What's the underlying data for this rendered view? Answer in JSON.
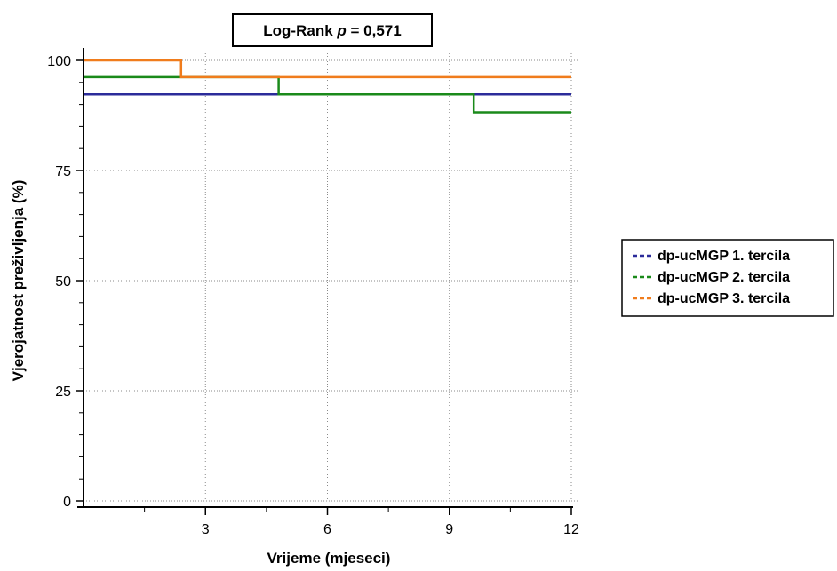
{
  "chart_data": {
    "type": "line",
    "step": true,
    "annotation": {
      "prefix": "Log-Rank ",
      "italic": "p",
      "suffix": " = 0,571"
    },
    "xlabel": "Vrijeme (mjeseci)",
    "ylabel": "Vjerojatnost preživljenja (%)",
    "xlim": [
      0,
      12
    ],
    "ylim": [
      0,
      100
    ],
    "x_ticks": [
      3,
      6,
      9,
      12
    ],
    "x_tick_labels": [
      "3",
      "6",
      "9",
      "12"
    ],
    "x_minor_ticks": [
      1.5,
      4.5,
      7.5,
      10.5
    ],
    "y_ticks": [
      0,
      25,
      50,
      75,
      100
    ],
    "y_tick_labels": [
      "0",
      "25",
      "50",
      "75",
      "100"
    ],
    "y_minor_ticks": [
      5,
      10,
      15,
      20,
      30,
      35,
      40,
      45,
      55,
      60,
      65,
      70,
      80,
      85,
      90,
      95
    ],
    "grid": true,
    "legend_position": "right",
    "series": [
      {
        "name": "dp-ucMGP 1. tercila",
        "color": "#2b2b9a",
        "x": [
          0,
          12
        ],
        "y": [
          92.3,
          92.3
        ]
      },
      {
        "name": "dp-ucMGP 2. tercila",
        "color": "#1a8a1a",
        "x": [
          0,
          4.8,
          9.6,
          12
        ],
        "y": [
          96.2,
          92.3,
          88.2,
          88.2
        ]
      },
      {
        "name": "dp-ucMGP 3. tercila",
        "color": "#f07c1c",
        "x": [
          0,
          2.4,
          12
        ],
        "y": [
          100,
          96.2,
          96.2
        ]
      }
    ]
  }
}
